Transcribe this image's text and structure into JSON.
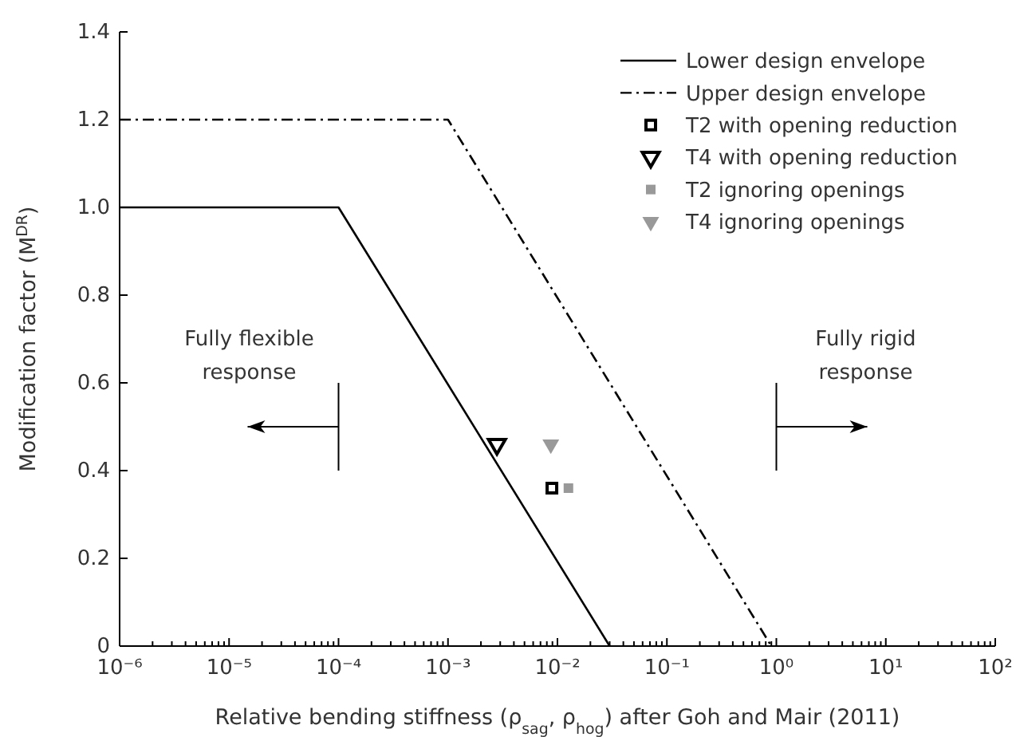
{
  "chart_data": {
    "type": "line",
    "xlabel": "Relative bending stiffness (ρ$_{sag}$, ρ$_{hog}$) after Goh and Mair (2011)",
    "ylabel": "Modification factor (M$^{DR}$)",
    "log": "x",
    "grid": false,
    "legend": "top right",
    "xlim": [
      1e-06,
      100
    ],
    "ylim": [
      0,
      1.4
    ],
    "xticks": [
      {
        "value": 1e-06,
        "label": "10⁻⁶"
      },
      {
        "value": 1e-05,
        "label": "10⁻⁵"
      },
      {
        "value": 0.0001,
        "label": "10⁻⁴"
      },
      {
        "value": 0.001,
        "label": "10⁻³"
      },
      {
        "value": 0.01,
        "label": "10⁻²"
      },
      {
        "value": 0.1,
        "label": "10⁻¹"
      },
      {
        "value": 1,
        "label": "10⁰"
      },
      {
        "value": 10,
        "label": "10¹"
      },
      {
        "value": 100,
        "label": "10²"
      }
    ],
    "yticks": [
      0,
      {
        "value": 0.2,
        "label": "0.2"
      },
      {
        "value": 0.4,
        "label": "0.4"
      },
      {
        "value": 0.6,
        "label": "0.6"
      },
      {
        "value": 0.8,
        "label": "0.8"
      },
      {
        "value": 1.0,
        "label": "1.0"
      },
      {
        "value": 1.2,
        "label": "1.2"
      },
      {
        "value": 1.4,
        "label": "1.4"
      }
    ],
    "annotations": [
      "Fully flexible response",
      "Fully rigid response"
    ],
    "series": [
      {
        "name": "Lower design envelope",
        "color": "#000000",
        "line_style": "solid",
        "marker": "none",
        "x": [
          1e-06,
          0.0001,
          0.03
        ],
        "values": [
          1.0,
          1.0,
          0
        ]
      },
      {
        "name": "Upper design envelope",
        "color": "#000000",
        "line_style": "dashdot",
        "marker": "none",
        "x": [
          1e-06,
          0.001,
          0.9
        ],
        "values": [
          1.2,
          1.2,
          0
        ]
      },
      {
        "name": "T2 with opening reduction",
        "type": "scatter",
        "color": "#000000",
        "marker": "square",
        "x": [
          0.0089
        ],
        "values": [
          0.36
        ]
      },
      {
        "name": "T4 with opening reduction",
        "type": "scatter",
        "color": "#000000",
        "marker": "triangle",
        "x": [
          0.0028
        ],
        "values": [
          0.46
        ]
      },
      {
        "name": "T2 ignoring openings",
        "type": "scatter",
        "color": "#999999",
        "marker": "square",
        "x": [
          0.0126
        ],
        "values": [
          0.36
        ]
      },
      {
        "name": "T4 ignoring openings",
        "type": "scatter",
        "color": "#999999",
        "marker": "triangle",
        "x": [
          0.0087
        ],
        "values": [
          0.46
        ]
      }
    ]
  }
}
